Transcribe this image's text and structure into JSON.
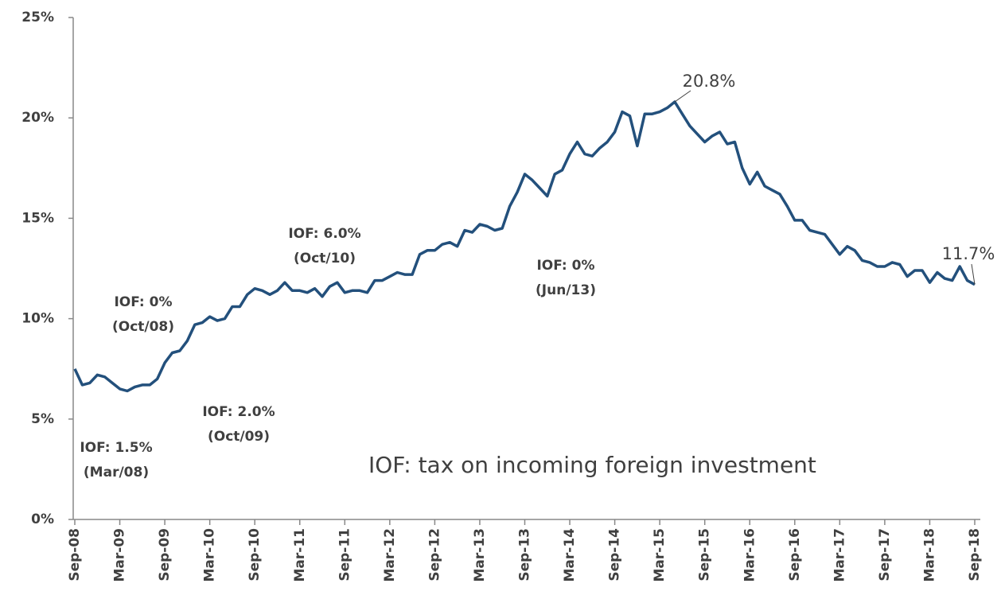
{
  "chart_data": {
    "type": "line",
    "categories": [
      "Sep-08",
      null,
      null,
      null,
      null,
      null,
      "Mar-09",
      null,
      null,
      null,
      null,
      null,
      "Sep-09",
      null,
      null,
      null,
      null,
      null,
      "Mar-10",
      null,
      null,
      null,
      null,
      null,
      "Sep-10",
      null,
      null,
      null,
      null,
      null,
      "Mar-11",
      null,
      null,
      null,
      null,
      null,
      "Sep-11",
      null,
      null,
      null,
      null,
      null,
      "Mar-12",
      null,
      null,
      null,
      null,
      null,
      "Sep-12",
      null,
      null,
      null,
      null,
      null,
      "Mar-13",
      null,
      null,
      null,
      null,
      null,
      "Sep-13",
      null,
      null,
      null,
      null,
      null,
      "Mar-14",
      null,
      null,
      null,
      null,
      null,
      "Sep-14",
      null,
      null,
      null,
      null,
      null,
      "Mar-15",
      null,
      null,
      null,
      null,
      null,
      "Sep-15",
      null,
      null,
      null,
      null,
      null,
      "Mar-16",
      null,
      null,
      null,
      null,
      null,
      "Sep-16",
      null,
      null,
      null,
      null,
      null,
      "Mar-17",
      null,
      null,
      null,
      null,
      null,
      "Sep-17",
      null,
      null,
      null,
      null,
      null,
      "Mar-18",
      null,
      null,
      null,
      null,
      null,
      "Sep-18"
    ],
    "values": [
      7.5,
      6.7,
      6.8,
      7.2,
      7.1,
      6.8,
      6.5,
      6.4,
      6.6,
      6.7,
      6.7,
      7.0,
      7.8,
      8.3,
      8.4,
      8.9,
      9.7,
      9.8,
      10.1,
      9.9,
      10.0,
      10.6,
      10.6,
      11.2,
      11.5,
      11.4,
      11.2,
      11.4,
      11.8,
      11.4,
      11.4,
      11.3,
      11.5,
      11.1,
      11.6,
      11.8,
      11.3,
      11.4,
      11.4,
      11.3,
      11.9,
      11.9,
      12.1,
      12.3,
      12.2,
      12.2,
      13.2,
      13.4,
      13.4,
      13.7,
      13.8,
      13.6,
      14.4,
      14.3,
      14.7,
      14.6,
      14.4,
      14.5,
      15.6,
      16.3,
      17.2,
      16.9,
      16.5,
      16.1,
      17.2,
      17.4,
      18.2,
      18.8,
      18.2,
      18.1,
      18.5,
      18.8,
      19.3,
      20.3,
      20.1,
      18.6,
      20.2,
      20.2,
      20.3,
      20.5,
      20.8,
      20.2,
      19.6,
      19.2,
      18.8,
      19.1,
      19.3,
      18.7,
      18.8,
      17.5,
      16.7,
      17.3,
      16.6,
      16.4,
      16.2,
      15.6,
      14.9,
      14.9,
      14.4,
      14.3,
      14.2,
      13.7,
      13.2,
      13.6,
      13.4,
      12.9,
      12.8,
      12.6,
      12.6,
      12.8,
      12.7,
      12.1,
      12.4,
      12.4,
      11.8,
      12.3,
      12.0,
      11.9,
      12.6,
      11.9,
      11.7
    ],
    "value_labels": [
      null,
      null,
      null,
      null,
      null,
      null,
      null,
      null,
      null,
      null,
      null,
      null,
      null,
      null,
      null,
      null,
      null,
      null,
      null,
      null,
      null,
      null,
      null,
      null,
      null,
      null,
      null,
      null,
      null,
      null,
      null,
      null,
      null,
      null,
      null,
      null,
      null,
      null,
      null,
      null,
      null,
      null,
      null,
      null,
      null,
      null,
      null,
      null,
      null,
      null,
      null,
      null,
      null,
      null,
      null,
      null,
      null,
      null,
      null,
      null,
      null,
      null,
      null,
      null,
      null,
      null,
      null,
      null,
      null,
      null,
      null,
      null,
      null,
      null,
      null,
      null,
      null,
      null,
      null,
      null,
      "20.8%",
      null,
      null,
      null,
      null,
      null,
      null,
      null,
      null,
      null,
      null,
      null,
      null,
      null,
      null,
      null,
      null,
      null,
      null,
      null,
      null,
      null,
      null,
      null,
      null,
      null,
      null,
      null,
      null,
      null,
      null,
      null,
      null,
      null,
      null,
      null,
      null,
      null,
      null,
      null,
      "11.7%"
    ],
    "color": "#23507c",
    "ylim": [
      0,
      25
    ],
    "yticks": [
      {
        "value": 0,
        "label": "0%"
      },
      {
        "value": 5,
        "label": "5%"
      },
      {
        "value": 10,
        "label": "10%"
      },
      {
        "value": 15,
        "label": "15%"
      },
      {
        "value": 20,
        "label": "20%"
      },
      {
        "value": 25,
        "label": "25%"
      }
    ],
    "annotations": [
      [
        "IOF: 1.5%",
        "(Mar/08)"
      ],
      [
        "IOF: 0%",
        "(Oct/08)"
      ],
      [
        "IOF: 2.0%",
        "(Oct/09)"
      ],
      [
        "IOF: 6.0%",
        "(Oct/10)"
      ],
      [
        "IOF: 0%",
        "(Jun/13)"
      ]
    ],
    "note": "IOF: tax on incoming foreign investment"
  }
}
